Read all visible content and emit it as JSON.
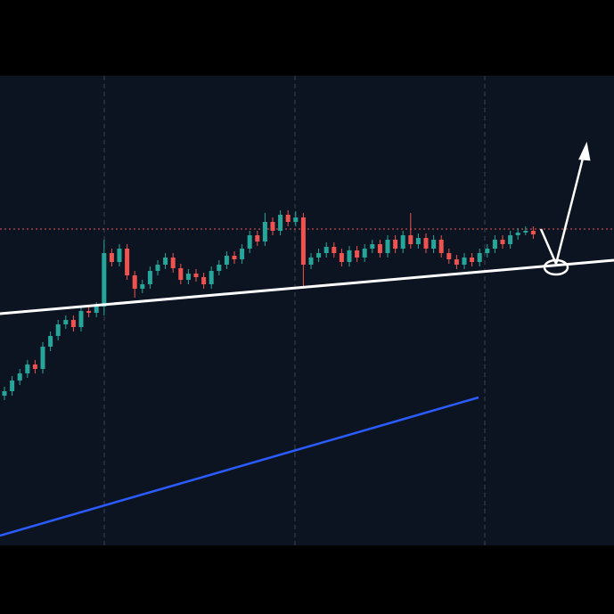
{
  "chart_data": {
    "type": "candlestick",
    "up_color": "#26a69a",
    "down_color": "#ef5350",
    "ylim": [
      77,
      604
    ],
    "open": [
      245,
      250,
      262,
      270,
      280,
      275,
      300,
      312,
      325,
      330,
      322,
      340,
      338,
      345,
      405,
      395,
      410,
      380,
      365,
      370,
      385,
      392,
      400,
      388,
      375,
      382,
      378,
      370,
      385,
      392,
      402,
      398,
      410,
      425,
      418,
      440,
      430,
      448,
      440,
      445,
      392,
      400,
      405,
      412,
      405,
      395,
      408,
      400,
      410,
      415,
      405,
      420,
      410,
      425,
      415,
      422,
      410,
      420,
      405,
      398,
      392,
      400,
      395,
      405,
      410,
      420,
      415,
      425,
      428,
      430
    ],
    "high": [
      255,
      267,
      275,
      285,
      285,
      305,
      317,
      330,
      335,
      335,
      345,
      345,
      350,
      420,
      410,
      415,
      415,
      385,
      375,
      390,
      397,
      405,
      405,
      393,
      387,
      387,
      383,
      390,
      397,
      407,
      407,
      415,
      430,
      430,
      450,
      445,
      453,
      453,
      452,
      450,
      405,
      410,
      417,
      417,
      410,
      413,
      413,
      415,
      420,
      420,
      425,
      425,
      430,
      450,
      427,
      427,
      425,
      425,
      410,
      403,
      405,
      405,
      410,
      415,
      425,
      425,
      430,
      433,
      435,
      435
    ],
    "low": [
      240,
      245,
      257,
      265,
      270,
      270,
      295,
      307,
      320,
      317,
      317,
      333,
      333,
      335,
      390,
      390,
      375,
      355,
      360,
      365,
      380,
      387,
      383,
      370,
      370,
      373,
      365,
      365,
      380,
      387,
      393,
      393,
      405,
      413,
      413,
      425,
      425,
      435,
      435,
      368,
      387,
      395,
      400,
      400,
      390,
      390,
      395,
      395,
      405,
      400,
      400,
      405,
      405,
      410,
      410,
      405,
      405,
      400,
      393,
      387,
      387,
      390,
      390,
      400,
      405,
      410,
      410,
      420,
      425,
      421
    ],
    "close": [
      250,
      262,
      270,
      280,
      275,
      300,
      312,
      325,
      330,
      322,
      340,
      338,
      345,
      405,
      395,
      410,
      380,
      365,
      370,
      385,
      392,
      400,
      388,
      375,
      382,
      378,
      370,
      385,
      392,
      402,
      398,
      410,
      425,
      418,
      440,
      430,
      448,
      440,
      445,
      392,
      400,
      405,
      412,
      405,
      395,
      408,
      400,
      410,
      415,
      405,
      420,
      410,
      425,
      415,
      422,
      410,
      420,
      405,
      398,
      392,
      400,
      395,
      405,
      410,
      420,
      415,
      425,
      428,
      430,
      426
    ]
  }
}
